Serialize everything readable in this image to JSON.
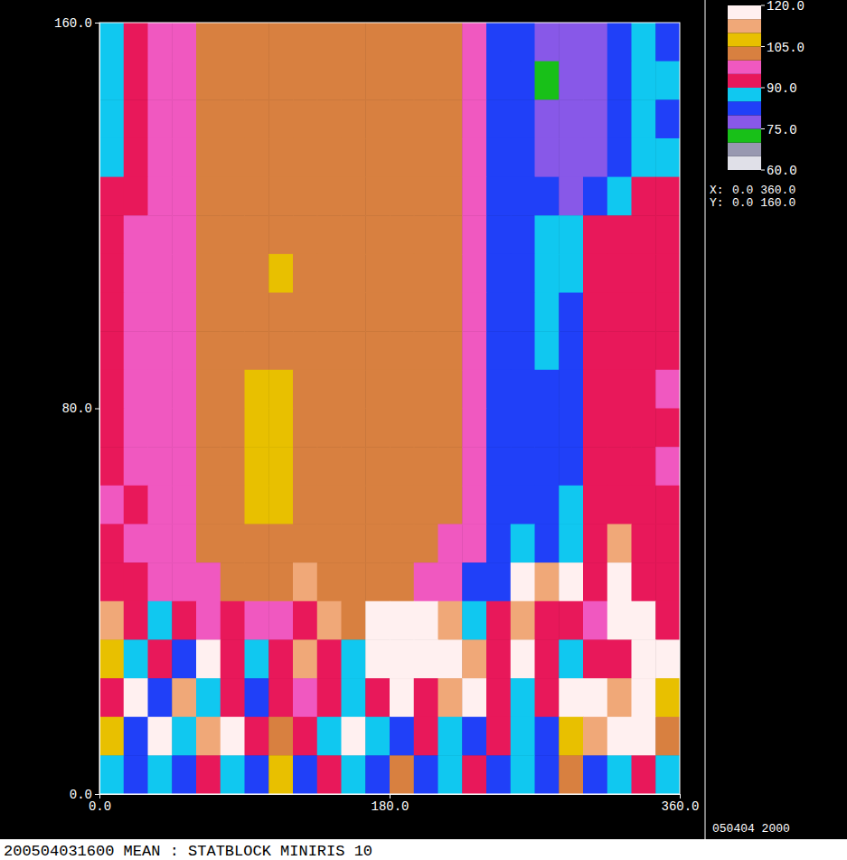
{
  "chart_data": {
    "type": "heatmap",
    "title": "200504031600 MEAN : STATBLOCK MINIRIS 10",
    "annotations": [
      "050404 2000",
      "X:",
      "0.0 360.0",
      "Y:",
      "0.0 160.0"
    ],
    "xlim": [
      0,
      360
    ],
    "ylim": [
      0,
      160
    ],
    "xticks": [
      {
        "value": 0,
        "label": "0.0"
      },
      {
        "value": 180,
        "label": "180.0"
      },
      {
        "value": 360,
        "label": "360.0"
      }
    ],
    "yticks": [
      {
        "value": 0,
        "label": "0.0"
      },
      {
        "value": 80,
        "label": "80.0"
      },
      {
        "value": 160,
        "label": "160.0"
      }
    ],
    "colorbar": {
      "range": [
        60,
        120
      ],
      "ticks": [
        {
          "value": 120,
          "label": "120.0"
        },
        {
          "value": 105,
          "label": "105.0"
        },
        {
          "value": 90,
          "label": "90.0"
        },
        {
          "value": 75,
          "label": "75.0"
        },
        {
          "value": 60,
          "label": "60.0"
        }
      ]
    },
    "x": [
      7.5,
      22.5,
      37.5,
      52.5,
      67.5,
      82.5,
      97.5,
      112.5,
      127.5,
      142.5,
      157.5,
      172.5,
      187.5,
      202.5,
      217.5,
      232.5,
      247.5,
      262.5,
      277.5,
      292.5,
      307.5,
      322.5,
      337.5,
      352.5
    ],
    "y": [
      156,
      148,
      140,
      132,
      124,
      116,
      108,
      100,
      92,
      84,
      76,
      68,
      60,
      52,
      44,
      36,
      28,
      20,
      12,
      4
    ],
    "cells": [
      [
        86,
        91,
        96,
        97,
        101,
        102,
        101,
        102,
        101,
        102,
        102,
        101,
        102,
        101,
        101,
        98,
        84,
        82,
        79,
        77,
        78,
        81,
        86,
        84
      ],
      [
        85,
        92,
        96,
        96,
        102,
        101,
        102,
        101,
        102,
        101,
        101,
        102,
        101,
        102,
        100,
        98,
        83,
        81,
        74,
        78,
        77,
        80,
        85,
        86
      ],
      [
        86,
        91,
        95,
        97,
        101,
        102,
        103,
        102,
        101,
        102,
        101,
        101,
        102,
        101,
        101,
        97,
        84,
        82,
        78,
        77,
        79,
        81,
        86,
        84
      ],
      [
        87,
        92,
        96,
        98,
        101,
        102,
        101,
        101,
        102,
        101,
        102,
        101,
        101,
        101,
        100,
        98,
        83,
        82,
        79,
        78,
        78,
        82,
        87,
        85
      ],
      [
        92,
        91,
        95,
        97,
        101,
        102,
        102,
        101,
        102,
        101,
        101,
        102,
        101,
        101,
        100,
        98,
        83,
        82,
        81,
        79,
        82,
        86,
        91,
        92
      ],
      [
        92,
        95,
        96,
        98,
        101,
        102,
        103,
        102,
        103,
        102,
        102,
        101,
        102,
        101,
        100,
        97,
        82,
        83,
        86,
        87,
        92,
        91,
        92,
        93
      ],
      [
        93,
        95,
        96,
        98,
        101,
        102,
        103,
        106,
        103,
        102,
        102,
        101,
        102,
        101,
        100,
        97,
        83,
        82,
        86,
        87,
        92,
        91,
        92,
        93
      ],
      [
        92,
        95,
        97,
        98,
        101,
        103,
        102,
        102,
        103,
        102,
        101,
        102,
        101,
        101,
        100,
        97,
        82,
        83,
        86,
        84,
        92,
        92,
        92,
        93
      ],
      [
        92,
        96,
        96,
        98,
        101,
        102,
        103,
        102,
        103,
        102,
        102,
        101,
        102,
        101,
        100,
        97,
        82,
        83,
        85,
        84,
        92,
        91,
        93,
        93
      ],
      [
        93,
        95,
        96,
        98,
        101,
        103,
        106,
        107,
        104,
        103,
        102,
        102,
        101,
        101,
        101,
        98,
        82,
        81,
        83,
        84,
        92,
        93,
        92,
        95
      ],
      [
        93,
        95,
        97,
        98,
        102,
        103,
        107,
        106,
        104,
        103,
        102,
        101,
        101,
        101,
        101,
        98,
        82,
        81,
        83,
        84,
        92,
        93,
        92,
        94
      ],
      [
        92,
        96,
        96,
        98,
        101,
        103,
        106,
        107,
        104,
        102,
        102,
        102,
        101,
        101,
        100,
        98,
        82,
        82,
        83,
        84,
        92,
        93,
        92,
        95
      ],
      [
        95,
        93,
        96,
        98,
        101,
        104,
        108,
        107,
        104,
        103,
        102,
        101,
        101,
        100,
        100,
        97,
        82,
        81,
        83,
        86,
        92,
        92,
        93,
        93
      ],
      [
        92,
        96,
        96,
        98,
        101,
        102,
        104,
        103,
        102,
        101,
        101,
        102,
        101,
        100,
        99,
        97,
        82,
        86,
        83,
        88,
        91,
        112,
        93,
        92
      ],
      [
        92,
        93,
        95,
        96,
        98,
        101,
        101,
        102,
        111,
        101,
        101,
        103,
        101,
        98,
        96,
        84,
        83,
        116,
        112,
        117,
        93,
        116,
        92,
        91
      ],
      [
        111,
        92,
        87,
        93,
        95,
        94,
        96,
        97,
        94,
        112,
        101,
        117,
        118,
        116,
        113,
        88,
        91,
        112,
        92,
        93,
        97,
        115,
        118,
        94
      ],
      [
        106,
        86,
        92,
        83,
        116,
        92,
        87,
        93,
        111,
        92,
        88,
        118,
        119,
        117,
        116,
        112,
        91,
        116,
        92,
        86,
        93,
        92,
        117,
        116
      ],
      [
        92,
        116,
        83,
        112,
        87,
        93,
        82,
        92,
        96,
        91,
        86,
        92,
        115,
        93,
        112,
        117,
        92,
        86,
        93,
        117,
        118,
        113,
        116,
        107
      ],
      [
        107,
        83,
        116,
        86,
        111,
        117,
        92,
        102,
        91,
        87,
        116,
        86,
        84,
        92,
        88,
        84,
        93,
        87,
        83,
        106,
        112,
        117,
        116,
        104
      ],
      [
        86,
        82,
        88,
        83,
        92,
        86,
        82,
        106,
        84,
        91,
        86,
        82,
        103,
        84,
        86,
        92,
        82,
        86,
        83,
        102,
        82,
        87,
        91,
        88
      ]
    ]
  }
}
